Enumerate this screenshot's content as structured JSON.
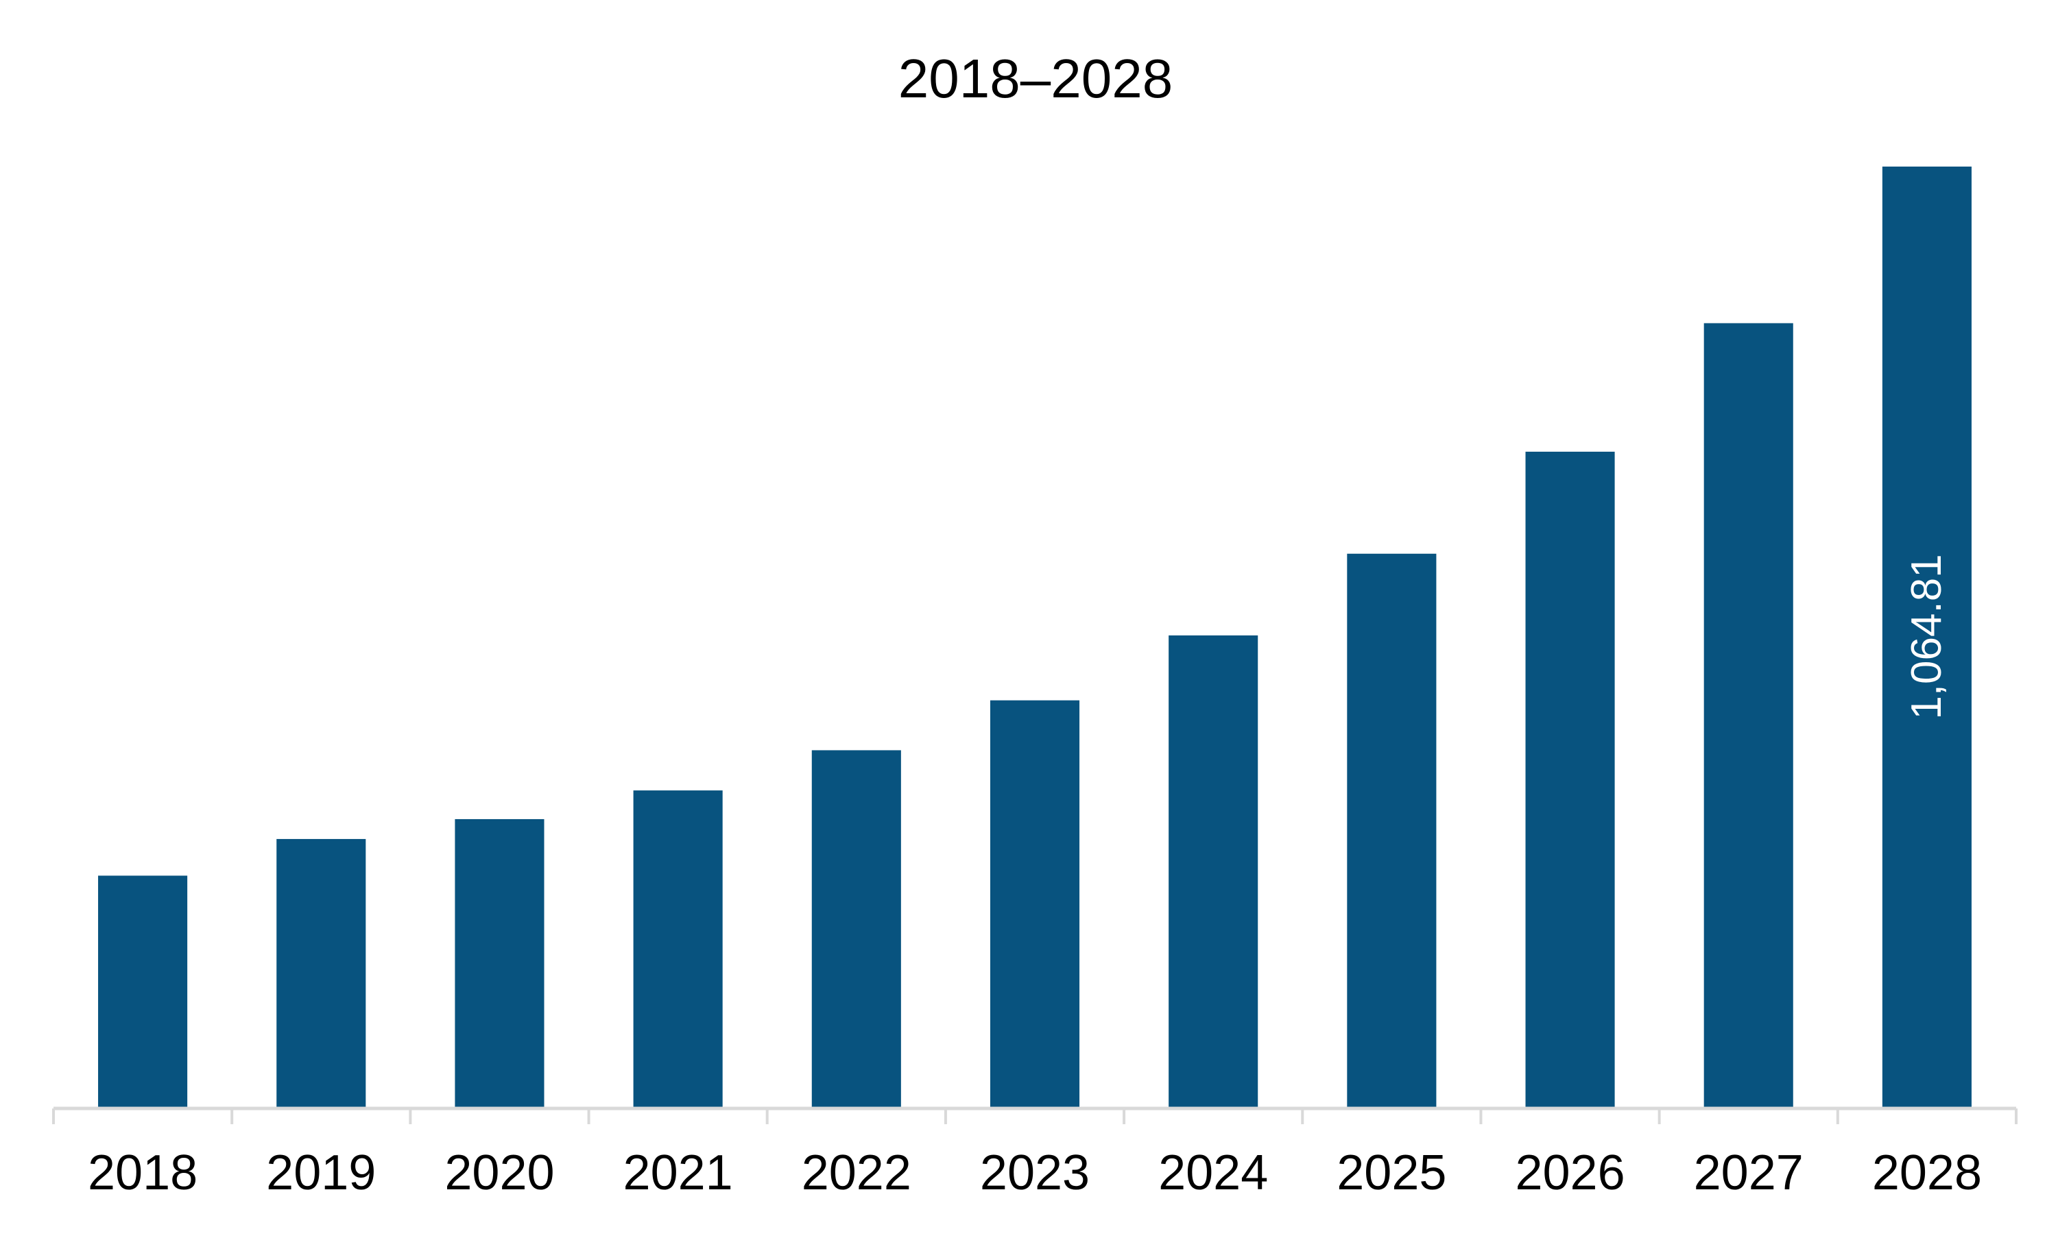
{
  "chart_data": {
    "type": "bar",
    "title": "2018–2028",
    "xlabel": "",
    "ylabel": "",
    "categories": [
      "2018",
      "2019",
      "2020",
      "2021",
      "2022",
      "2023",
      "2024",
      "2025",
      "2026",
      "2027",
      "2028"
    ],
    "values": [
      262.0,
      303.5,
      326.0,
      358.5,
      404.0,
      460.5,
      534.0,
      626.5,
      742.0,
      887.5,
      1064.81
    ],
    "data_labels": [
      {
        "category": "2028",
        "text": "1,064.81",
        "orientation": "vertical"
      }
    ],
    "ylim": [
      0,
      1064.81
    ],
    "grid": false,
    "legend": "none",
    "bar_color": "#08537f",
    "label_color": "#ffffff",
    "axis_color": "#d9d9d9",
    "text_color": "#000000"
  }
}
